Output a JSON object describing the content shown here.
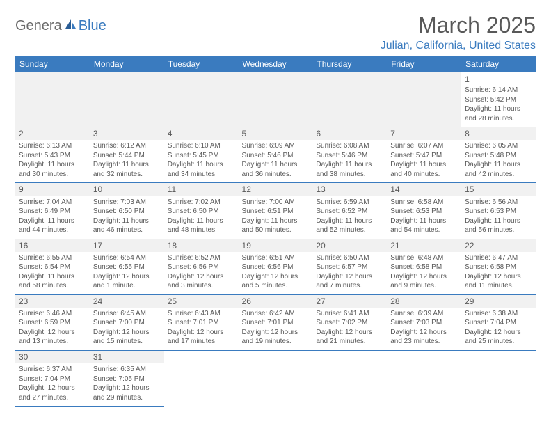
{
  "logo": {
    "part1": "Genera",
    "part2": "Blue"
  },
  "title": "March 2025",
  "location": "Julian, California, United States",
  "colors": {
    "accent": "#3a7bbf",
    "text": "#595959",
    "shade": "#f1f1f1",
    "bg": "#ffffff"
  },
  "dayHeaders": [
    "Sunday",
    "Monday",
    "Tuesday",
    "Wednesday",
    "Thursday",
    "Friday",
    "Saturday"
  ],
  "weeks": [
    [
      null,
      null,
      null,
      null,
      null,
      null,
      {
        "n": "1",
        "sr": "Sunrise: 6:14 AM",
        "ss": "Sunset: 5:42 PM",
        "dl": "Daylight: 11 hours and 28 minutes."
      }
    ],
    [
      {
        "n": "2",
        "sr": "Sunrise: 6:13 AM",
        "ss": "Sunset: 5:43 PM",
        "dl": "Daylight: 11 hours and 30 minutes."
      },
      {
        "n": "3",
        "sr": "Sunrise: 6:12 AM",
        "ss": "Sunset: 5:44 PM",
        "dl": "Daylight: 11 hours and 32 minutes."
      },
      {
        "n": "4",
        "sr": "Sunrise: 6:10 AM",
        "ss": "Sunset: 5:45 PM",
        "dl": "Daylight: 11 hours and 34 minutes."
      },
      {
        "n": "5",
        "sr": "Sunrise: 6:09 AM",
        "ss": "Sunset: 5:46 PM",
        "dl": "Daylight: 11 hours and 36 minutes."
      },
      {
        "n": "6",
        "sr": "Sunrise: 6:08 AM",
        "ss": "Sunset: 5:46 PM",
        "dl": "Daylight: 11 hours and 38 minutes."
      },
      {
        "n": "7",
        "sr": "Sunrise: 6:07 AM",
        "ss": "Sunset: 5:47 PM",
        "dl": "Daylight: 11 hours and 40 minutes."
      },
      {
        "n": "8",
        "sr": "Sunrise: 6:05 AM",
        "ss": "Sunset: 5:48 PM",
        "dl": "Daylight: 11 hours and 42 minutes."
      }
    ],
    [
      {
        "n": "9",
        "sr": "Sunrise: 7:04 AM",
        "ss": "Sunset: 6:49 PM",
        "dl": "Daylight: 11 hours and 44 minutes."
      },
      {
        "n": "10",
        "sr": "Sunrise: 7:03 AM",
        "ss": "Sunset: 6:50 PM",
        "dl": "Daylight: 11 hours and 46 minutes."
      },
      {
        "n": "11",
        "sr": "Sunrise: 7:02 AM",
        "ss": "Sunset: 6:50 PM",
        "dl": "Daylight: 11 hours and 48 minutes."
      },
      {
        "n": "12",
        "sr": "Sunrise: 7:00 AM",
        "ss": "Sunset: 6:51 PM",
        "dl": "Daylight: 11 hours and 50 minutes."
      },
      {
        "n": "13",
        "sr": "Sunrise: 6:59 AM",
        "ss": "Sunset: 6:52 PM",
        "dl": "Daylight: 11 hours and 52 minutes."
      },
      {
        "n": "14",
        "sr": "Sunrise: 6:58 AM",
        "ss": "Sunset: 6:53 PM",
        "dl": "Daylight: 11 hours and 54 minutes."
      },
      {
        "n": "15",
        "sr": "Sunrise: 6:56 AM",
        "ss": "Sunset: 6:53 PM",
        "dl": "Daylight: 11 hours and 56 minutes."
      }
    ],
    [
      {
        "n": "16",
        "sr": "Sunrise: 6:55 AM",
        "ss": "Sunset: 6:54 PM",
        "dl": "Daylight: 11 hours and 58 minutes."
      },
      {
        "n": "17",
        "sr": "Sunrise: 6:54 AM",
        "ss": "Sunset: 6:55 PM",
        "dl": "Daylight: 12 hours and 1 minute."
      },
      {
        "n": "18",
        "sr": "Sunrise: 6:52 AM",
        "ss": "Sunset: 6:56 PM",
        "dl": "Daylight: 12 hours and 3 minutes."
      },
      {
        "n": "19",
        "sr": "Sunrise: 6:51 AM",
        "ss": "Sunset: 6:56 PM",
        "dl": "Daylight: 12 hours and 5 minutes."
      },
      {
        "n": "20",
        "sr": "Sunrise: 6:50 AM",
        "ss": "Sunset: 6:57 PM",
        "dl": "Daylight: 12 hours and 7 minutes."
      },
      {
        "n": "21",
        "sr": "Sunrise: 6:48 AM",
        "ss": "Sunset: 6:58 PM",
        "dl": "Daylight: 12 hours and 9 minutes."
      },
      {
        "n": "22",
        "sr": "Sunrise: 6:47 AM",
        "ss": "Sunset: 6:58 PM",
        "dl": "Daylight: 12 hours and 11 minutes."
      }
    ],
    [
      {
        "n": "23",
        "sr": "Sunrise: 6:46 AM",
        "ss": "Sunset: 6:59 PM",
        "dl": "Daylight: 12 hours and 13 minutes."
      },
      {
        "n": "24",
        "sr": "Sunrise: 6:45 AM",
        "ss": "Sunset: 7:00 PM",
        "dl": "Daylight: 12 hours and 15 minutes."
      },
      {
        "n": "25",
        "sr": "Sunrise: 6:43 AM",
        "ss": "Sunset: 7:01 PM",
        "dl": "Daylight: 12 hours and 17 minutes."
      },
      {
        "n": "26",
        "sr": "Sunrise: 6:42 AM",
        "ss": "Sunset: 7:01 PM",
        "dl": "Daylight: 12 hours and 19 minutes."
      },
      {
        "n": "27",
        "sr": "Sunrise: 6:41 AM",
        "ss": "Sunset: 7:02 PM",
        "dl": "Daylight: 12 hours and 21 minutes."
      },
      {
        "n": "28",
        "sr": "Sunrise: 6:39 AM",
        "ss": "Sunset: 7:03 PM",
        "dl": "Daylight: 12 hours and 23 minutes."
      },
      {
        "n": "29",
        "sr": "Sunrise: 6:38 AM",
        "ss": "Sunset: 7:04 PM",
        "dl": "Daylight: 12 hours and 25 minutes."
      }
    ],
    [
      {
        "n": "30",
        "sr": "Sunrise: 6:37 AM",
        "ss": "Sunset: 7:04 PM",
        "dl": "Daylight: 12 hours and 27 minutes."
      },
      {
        "n": "31",
        "sr": "Sunrise: 6:35 AM",
        "ss": "Sunset: 7:05 PM",
        "dl": "Daylight: 12 hours and 29 minutes."
      },
      null,
      null,
      null,
      null,
      null
    ]
  ]
}
